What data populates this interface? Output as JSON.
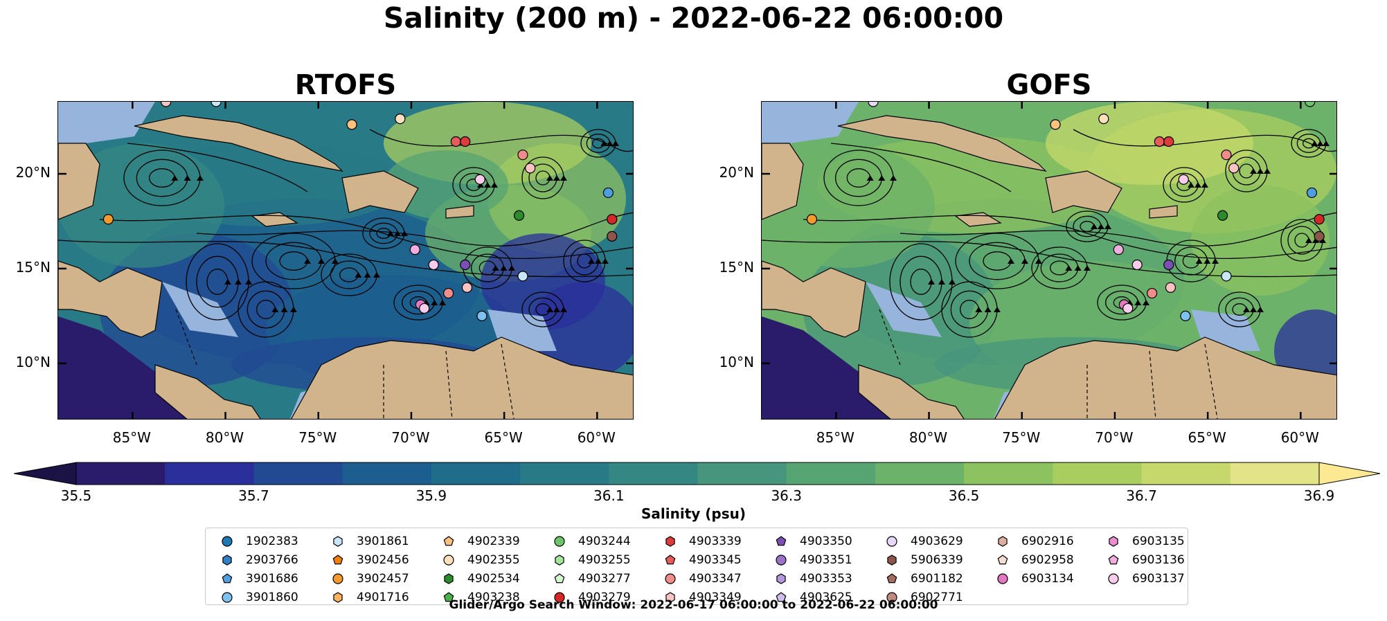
{
  "figure": {
    "suptitle": "Salinity (200 m) - 2022-06-22 06:00:00",
    "footer": "Glider/Argo Search Window: 2022-06-17 06:00:00 to 2022-06-22 06:00:00"
  },
  "chart_data": [
    {
      "type": "heatmap",
      "title": "RTOFS",
      "xlabel": "",
      "ylabel": "",
      "x_ticks": [
        "85°W",
        "80°W",
        "75°W",
        "70°W",
        "65°W",
        "60°W"
      ],
      "y_ticks": [
        "20°N",
        "15°N",
        "10°N"
      ],
      "x_tick_values": [
        -85,
        -80,
        -75,
        -70,
        -65,
        -60
      ],
      "y_tick_values": [
        20,
        15,
        10
      ],
      "xlim": [
        -89.0,
        -58.0
      ],
      "ylim": [
        7.0,
        23.8
      ],
      "variable": "Salinity at 200 m",
      "overlay": "surface current streamlines",
      "grid": false
    },
    {
      "type": "heatmap",
      "title": "GOFS",
      "xlabel": "",
      "ylabel": "",
      "x_ticks": [
        "85°W",
        "80°W",
        "75°W",
        "70°W",
        "65°W",
        "60°W"
      ],
      "y_ticks": [
        "20°N",
        "15°N",
        "10°N"
      ],
      "x_tick_values": [
        -85,
        -80,
        -75,
        -70,
        -65,
        -60
      ],
      "y_tick_values": [
        20,
        15,
        10
      ],
      "xlim": [
        -89.0,
        -58.0
      ],
      "ylim": [
        7.0,
        23.8
      ],
      "variable": "Salinity at 200 m",
      "overlay": "surface current streamlines",
      "grid": false
    }
  ],
  "colorbar": {
    "label": "Salinity (psu)",
    "ticks": [
      "35.5",
      "35.7",
      "35.9",
      "36.1",
      "36.3",
      "36.5",
      "36.7",
      "36.9"
    ],
    "range": [
      35.5,
      36.9
    ],
    "step": 0.1,
    "extend": "both",
    "colors": [
      "#2a1b6b",
      "#2b2f9b",
      "#214a93",
      "#1c5e8f",
      "#1f6d8a",
      "#287a86",
      "#348783",
      "#47957d",
      "#57a473",
      "#6cb26a",
      "#8cc260",
      "#aacd5f",
      "#c6d86b",
      "#e3e488",
      "#fde992",
      "#1b1346"
    ]
  },
  "colors": {
    "land": "#d2b48c",
    "shelf_water": "#96b4dc",
    "streamline": "#000000"
  },
  "legend": {
    "columns": [
      [
        {
          "id": "1902383",
          "shape": "circle",
          "color": "#1f77b4"
        },
        {
          "id": "2903766",
          "shape": "hexagon",
          "color": "#2f80c8"
        },
        {
          "id": "3901686",
          "shape": "pentagon",
          "color": "#4e9fe0"
        },
        {
          "id": "3901860",
          "shape": "circle",
          "color": "#7ec1ef"
        }
      ],
      [
        {
          "id": "3901861",
          "shape": "hexagon",
          "color": "#c8e6f8"
        },
        {
          "id": "3902456",
          "shape": "pentagon",
          "color": "#f07f0e"
        },
        {
          "id": "3902457",
          "shape": "circle",
          "color": "#f39a2f"
        },
        {
          "id": "4901716",
          "shape": "hexagon",
          "color": "#f8b25e"
        }
      ],
      [
        {
          "id": "4902339",
          "shape": "pentagon",
          "color": "#fbc17f"
        },
        {
          "id": "4902355",
          "shape": "circle",
          "color": "#fde0bd"
        },
        {
          "id": "4902534",
          "shape": "hexagon",
          "color": "#2c8c2c"
        },
        {
          "id": "4903238",
          "shape": "pentagon",
          "color": "#4cb14c"
        }
      ],
      [
        {
          "id": "4903244",
          "shape": "circle",
          "color": "#6cc56c"
        },
        {
          "id": "4903255",
          "shape": "hexagon",
          "color": "#a6e4a0"
        },
        {
          "id": "4903277",
          "shape": "pentagon",
          "color": "#d5f5cf"
        },
        {
          "id": "4903279",
          "shape": "circle",
          "color": "#d62728"
        }
      ],
      [
        {
          "id": "4903339",
          "shape": "hexagon",
          "color": "#dd3b3c"
        },
        {
          "id": "4903345",
          "shape": "pentagon",
          "color": "#e85b5b"
        },
        {
          "id": "4903347",
          "shape": "circle",
          "color": "#f08d8b"
        },
        {
          "id": "4903349",
          "shape": "hexagon",
          "color": "#fbc4c2"
        }
      ],
      [
        {
          "id": "4903350",
          "shape": "pentagon",
          "color": "#7b4fb3"
        },
        {
          "id": "4903351",
          "shape": "circle",
          "color": "#9a73c9"
        },
        {
          "id": "4903353",
          "shape": "hexagon",
          "color": "#b597dc"
        },
        {
          "id": "4903625",
          "shape": "pentagon",
          "color": "#d2bdec"
        }
      ],
      [
        {
          "id": "4903629",
          "shape": "circle",
          "color": "#e8d8f7"
        },
        {
          "id": "5906339",
          "shape": "hexagon",
          "color": "#8c564b"
        },
        {
          "id": "6901182",
          "shape": "pentagon",
          "color": "#a46d60"
        },
        {
          "id": "6902771",
          "shape": "circle",
          "color": "#c08b7e"
        }
      ],
      [
        {
          "id": "6902916",
          "shape": "hexagon",
          "color": "#dcae9f"
        },
        {
          "id": "6902958",
          "shape": "pentagon",
          "color": "#f5dcd2"
        },
        {
          "id": "6903134",
          "shape": "circle",
          "color": "#e377c2"
        }
      ],
      [
        {
          "id": "6903135",
          "shape": "hexagon",
          "color": "#e98ecf"
        },
        {
          "id": "6903136",
          "shape": "pentagon",
          "color": "#f1addf"
        },
        {
          "id": "6903137",
          "shape": "circle",
          "color": "#f9ccec"
        }
      ]
    ]
  }
}
